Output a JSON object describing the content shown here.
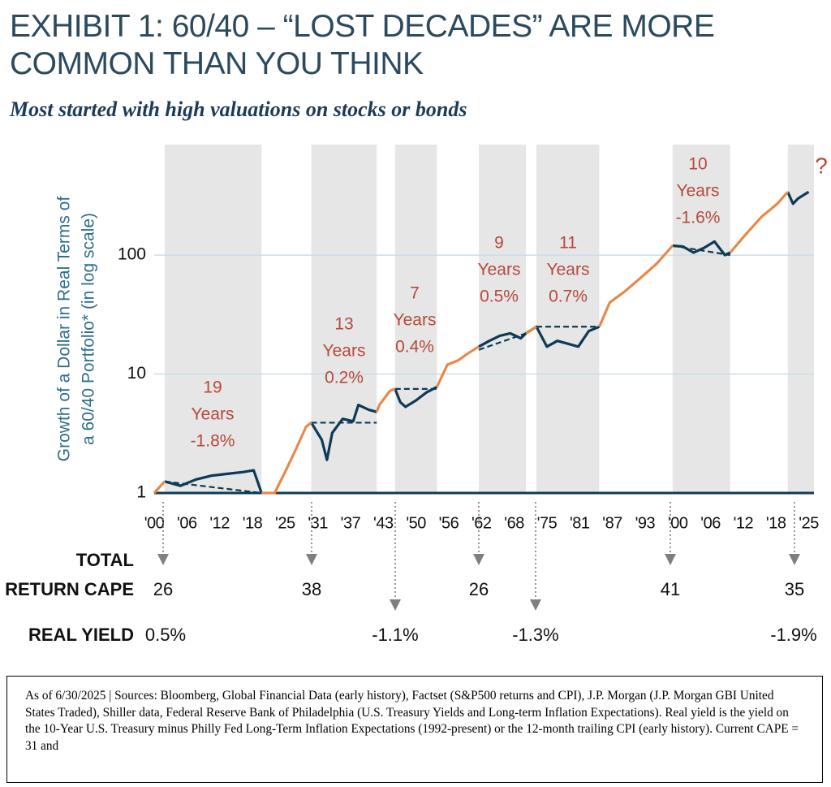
{
  "chart_data": {
    "type": "line",
    "title": "EXHIBIT 1: 60/40 – “LOST DECADES” ARE MORE COMMON THAN YOU THINK",
    "subtitle": "Most started with high valuations on stocks or bonds",
    "y_label": [
      "Growth of a Dollar in Real Terms of",
      "a 60/40 Portfolio* (in log scale)"
    ],
    "log_scale_y": true,
    "grid": true,
    "xlim": [
      1900,
      2026
    ],
    "ylim": [
      1,
      850
    ],
    "yticks": [
      1,
      10,
      100
    ],
    "xticks": [
      {
        "value": 1900,
        "label": "'00"
      },
      {
        "value": 1906.25,
        "label": "'06"
      },
      {
        "value": 1912.5,
        "label": "'12"
      },
      {
        "value": 1918.75,
        "label": "'18"
      },
      {
        "value": 1925,
        "label": "'25"
      },
      {
        "value": 1931.25,
        "label": "'31"
      },
      {
        "value": 1937.5,
        "label": "'37"
      },
      {
        "value": 1943.75,
        "label": "'43"
      },
      {
        "value": 1950,
        "label": "'50"
      },
      {
        "value": 1956.25,
        "label": "'56"
      },
      {
        "value": 1962.5,
        "label": "'62"
      },
      {
        "value": 1968.75,
        "label": "'68"
      },
      {
        "value": 1975,
        "label": "'75"
      },
      {
        "value": 1981.25,
        "label": "'81"
      },
      {
        "value": 1987.5,
        "label": "'87"
      },
      {
        "value": 1993.75,
        "label": "'93"
      },
      {
        "value": 2000,
        "label": "'00"
      },
      {
        "value": 2006.25,
        "label": "'06"
      },
      {
        "value": 2012.5,
        "label": "'12"
      },
      {
        "value": 2018.75,
        "label": "'18"
      },
      {
        "value": 2025,
        "label": "'25"
      }
    ],
    "x": [
      1900,
      1902,
      1905,
      1908,
      1911,
      1914,
      1917,
      1919,
      1920.5,
      1923,
      1925,
      1927,
      1929,
      1930,
      1932,
      1933,
      1934,
      1936,
      1938,
      1939,
      1941,
      1942.5,
      1943,
      1945,
      1946,
      1947,
      1948,
      1950,
      1952,
      1954,
      1956,
      1958,
      1960,
      1962,
      1964,
      1966,
      1968,
      1970,
      1971,
      1973,
      1975,
      1977,
      1979,
      1981,
      1983,
      1985,
      1987,
      1990,
      1993,
      1996,
      1999,
      2001,
      2003,
      2005,
      2007,
      2009,
      2010,
      2013,
      2016,
      2019,
      2021,
      2022,
      2023,
      2025
    ],
    "series": [
      {
        "color": "#0e3a55",
        "values": [
          null,
          1.25,
          1.15,
          1.3,
          1.4,
          1.45,
          1.5,
          1.55,
          1.0,
          null,
          null,
          null,
          null,
          3.9,
          2.8,
          1.9,
          3.2,
          4.2,
          4.0,
          5.5,
          5.0,
          4.8,
          null,
          null,
          7.5,
          5.8,
          5.3,
          6.0,
          7.0,
          7.8,
          null,
          null,
          null,
          17,
          19,
          21,
          22,
          20,
          22,
          25,
          17,
          19,
          18,
          17,
          23,
          25,
          null,
          null,
          null,
          null,
          120,
          118,
          105,
          115,
          130,
          100,
          105,
          null,
          null,
          null,
          340,
          270,
          300,
          340
        ]
      },
      {
        "color": "#e8894a",
        "values": [
          1.0,
          1.25,
          null,
          null,
          null,
          null,
          null,
          null,
          1.0,
          1.0,
          1.5,
          2.3,
          3.6,
          3.9,
          null,
          null,
          null,
          null,
          null,
          null,
          null,
          4.8,
          5.5,
          7.2,
          7.5,
          null,
          null,
          null,
          null,
          7.8,
          12,
          13,
          15,
          17,
          null,
          null,
          null,
          null,
          22,
          25,
          null,
          null,
          null,
          null,
          null,
          25,
          40,
          50,
          65,
          85,
          120,
          null,
          null,
          null,
          null,
          null,
          105,
          150,
          210,
          270,
          340,
          null,
          null,
          null
        ]
      }
    ],
    "shaded_periods": [
      [
        1902,
        1920.5
      ],
      [
        1930,
        1942.5
      ],
      [
        1946,
        1954
      ],
      [
        1962,
        1971
      ],
      [
        1973,
        1985
      ],
      [
        1999,
        2010
      ],
      [
        2021,
        2026
      ]
    ],
    "shade_color": "#e6e6e6",
    "trend_lines": [
      {
        "x": [
          1902,
          1920.5
        ],
        "y": [
          1.25,
          1.0
        ]
      },
      {
        "x": [
          1930,
          1942.5
        ],
        "y": [
          3.9,
          3.9
        ]
      },
      {
        "x": [
          1946,
          1954
        ],
        "y": [
          7.5,
          7.5
        ]
      },
      {
        "x": [
          1962,
          1971
        ],
        "y": [
          16,
          22
        ]
      },
      {
        "x": [
          1973,
          1985
        ],
        "y": [
          25,
          25
        ]
      },
      {
        "x": [
          1999,
          2010
        ],
        "y": [
          120,
          100
        ]
      }
    ],
    "annotations": [
      [
        "19",
        "Years",
        "-1.8%"
      ],
      [
        "13",
        "Years",
        "0.2%"
      ],
      [
        "7",
        "Years",
        "0.4%"
      ],
      [
        "9",
        "Years",
        "0.5%"
      ],
      [
        "11",
        "Years",
        "0.7%"
      ],
      [
        "10",
        "Years",
        "-1.6%"
      ],
      [
        "?"
      ]
    ],
    "annotation_color": "#b5493a",
    "valuation_table": {
      "cape_label": [
        "TOTAL",
        "RETURN CAPE"
      ],
      "cape": [
        26,
        38,
        26,
        41,
        35
      ],
      "real_yield_label": "REAL YIELD",
      "real_yield": [
        "0.5%",
        "-1.1%",
        "-1.3%",
        "-1.9%"
      ]
    }
  },
  "footnote": "As of 6/30/2025 | Sources: Bloomberg, Global Financial Data (early history), Factset (S&P500 returns and CPI), J.P. Morgan (J.P. Morgan GBI United States Traded), Shiller data, Federal Reserve Bank of Philadelphia (U.S. Treasury Yields and Long-term Inflation Expectations). Real yield is the yield on the 10-Year U.S. Treasury minus Philly Fed Long-Term Inflation Expectations (1992-present) or the 12-month trailing CPI (early history). Current CAPE = 31 and"
}
